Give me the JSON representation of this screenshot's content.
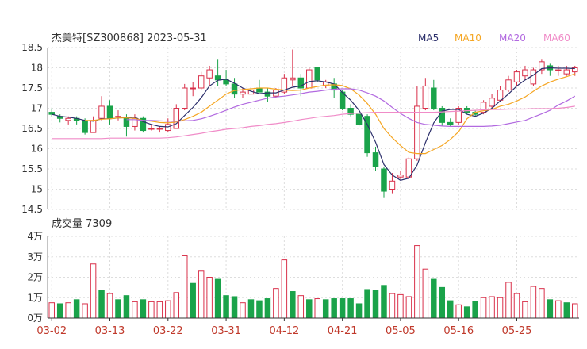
{
  "header": {
    "title": "杰美特[SZ300868] 2023-05-31",
    "legend": [
      {
        "label": "MA5",
        "color": "#2c2f6b"
      },
      {
        "label": "MA10",
        "color": "#f5a623"
      },
      {
        "label": "MA20",
        "color": "#b26ae0"
      },
      {
        "label": "MA60",
        "color": "#f08cc8"
      }
    ]
  },
  "volume_label": "成交量 7309",
  "colors": {
    "up": "#d9304a",
    "down": "#1aa34a",
    "grid": "#dddddd",
    "axis": "#333333"
  },
  "chart_data": [
    {
      "type": "candlestick",
      "name": "price",
      "ylim": [
        14.5,
        18.5
      ],
      "yticks": [
        "18.5",
        "18",
        "17.5",
        "17",
        "16.5",
        "16",
        "15.5",
        "15",
        "14.5"
      ],
      "x_labels": [
        "03-02",
        "03-13",
        "03-22",
        "03-31",
        "04-12",
        "04-21",
        "05-05",
        "05-16",
        "05-25"
      ],
      "x_label_index": [
        0,
        7,
        14,
        21,
        28,
        35,
        42,
        49,
        56
      ],
      "ohlc": [
        [
          16.9,
          17.0,
          16.8,
          16.85
        ],
        [
          16.8,
          16.85,
          16.65,
          16.75
        ],
        [
          16.7,
          16.8,
          16.6,
          16.75
        ],
        [
          16.75,
          16.8,
          16.6,
          16.7
        ],
        [
          16.7,
          16.75,
          16.35,
          16.4
        ],
        [
          16.4,
          16.8,
          16.4,
          16.7
        ],
        [
          16.75,
          17.3,
          16.7,
          17.05
        ],
        [
          17.05,
          17.2,
          16.6,
          16.75
        ],
        [
          16.8,
          16.95,
          16.7,
          16.8
        ],
        [
          16.75,
          16.85,
          16.3,
          16.55
        ],
        [
          16.55,
          16.85,
          16.45,
          16.75
        ],
        [
          16.75,
          16.8,
          16.4,
          16.45
        ],
        [
          16.5,
          16.6,
          16.45,
          16.5
        ],
        [
          16.5,
          16.55,
          16.4,
          16.5
        ],
        [
          16.45,
          16.75,
          16.4,
          16.6
        ],
        [
          16.5,
          17.1,
          16.5,
          17.0
        ],
        [
          17.0,
          17.6,
          16.95,
          17.5
        ],
        [
          17.5,
          17.65,
          17.3,
          17.5
        ],
        [
          17.5,
          17.9,
          17.45,
          17.8
        ],
        [
          17.75,
          18.05,
          17.55,
          17.95
        ],
        [
          17.8,
          18.2,
          17.55,
          17.7
        ],
        [
          17.7,
          17.95,
          17.55,
          17.6
        ],
        [
          17.6,
          17.75,
          17.25,
          17.35
        ],
        [
          17.35,
          17.5,
          17.25,
          17.4
        ],
        [
          17.35,
          17.55,
          17.3,
          17.45
        ],
        [
          17.5,
          17.7,
          17.4,
          17.4
        ],
        [
          17.4,
          17.5,
          17.15,
          17.3
        ],
        [
          17.3,
          17.5,
          17.25,
          17.45
        ],
        [
          17.4,
          17.85,
          17.35,
          17.75
        ],
        [
          17.7,
          18.45,
          17.55,
          17.75
        ],
        [
          17.75,
          17.85,
          17.3,
          17.5
        ],
        [
          17.5,
          18.0,
          17.5,
          17.95
        ],
        [
          18.0,
          18.0,
          17.65,
          17.7
        ],
        [
          17.55,
          17.7,
          17.5,
          17.65
        ],
        [
          17.6,
          17.75,
          17.25,
          17.45
        ],
        [
          17.4,
          17.45,
          16.95,
          17.0
        ],
        [
          17.0,
          17.1,
          16.8,
          16.85
        ],
        [
          16.85,
          16.9,
          16.55,
          16.6
        ],
        [
          16.8,
          16.85,
          15.8,
          15.9
        ],
        [
          15.9,
          16.05,
          15.45,
          15.55
        ],
        [
          15.5,
          15.55,
          14.8,
          14.95
        ],
        [
          15.0,
          15.4,
          14.9,
          15.2
        ],
        [
          15.3,
          15.45,
          15.25,
          15.35
        ],
        [
          15.3,
          15.8,
          15.25,
          15.75
        ],
        [
          15.75,
          17.55,
          15.7,
          17.05
        ],
        [
          17.0,
          17.75,
          16.95,
          17.55
        ],
        [
          17.5,
          17.7,
          16.95,
          17.0
        ],
        [
          17.0,
          17.05,
          16.55,
          16.65
        ],
        [
          16.65,
          16.75,
          16.55,
          16.6
        ],
        [
          16.65,
          17.05,
          16.6,
          17.0
        ],
        [
          17.0,
          17.05,
          16.85,
          16.9
        ],
        [
          16.9,
          16.95,
          16.8,
          16.85
        ],
        [
          16.9,
          17.2,
          16.85,
          17.15
        ],
        [
          17.05,
          17.35,
          17.0,
          17.25
        ],
        [
          17.2,
          17.55,
          17.15,
          17.45
        ],
        [
          17.45,
          17.8,
          17.4,
          17.7
        ],
        [
          17.65,
          17.95,
          17.55,
          17.9
        ],
        [
          17.8,
          18.05,
          17.7,
          17.95
        ],
        [
          17.6,
          18.0,
          17.55,
          17.95
        ],
        [
          17.95,
          18.2,
          17.85,
          18.15
        ],
        [
          18.05,
          18.1,
          17.8,
          17.95
        ],
        [
          17.95,
          18.05,
          17.8,
          17.95
        ],
        [
          17.85,
          18.05,
          17.8,
          17.95
        ],
        [
          17.9,
          18.05,
          17.8,
          18.0
        ]
      ],
      "ma": {
        "MA5": [
          16.85,
          16.8,
          16.78,
          16.75,
          16.7,
          16.68,
          16.74,
          16.74,
          16.76,
          16.77,
          16.78,
          16.67,
          16.6,
          16.55,
          16.54,
          16.62,
          16.82,
          17.02,
          17.26,
          17.55,
          17.69,
          17.72,
          17.62,
          17.5,
          17.42,
          17.36,
          17.38,
          17.38,
          17.45,
          17.52,
          17.55,
          17.66,
          17.68,
          17.65,
          17.6,
          17.39,
          17.2,
          16.95,
          16.6,
          16.16,
          15.61,
          15.35,
          15.22,
          15.27,
          15.6,
          16.15,
          16.64,
          16.93,
          16.97,
          16.97,
          16.85,
          16.8,
          16.88,
          17.0,
          17.18,
          17.35,
          17.55,
          17.7,
          17.82,
          17.98,
          18.0,
          17.99,
          17.99,
          17.98
        ],
        "MA10": [
          null,
          null,
          null,
          null,
          16.7,
          16.7,
          16.73,
          16.74,
          16.76,
          16.76,
          16.75,
          16.7,
          16.68,
          16.65,
          16.64,
          16.66,
          16.72,
          16.8,
          16.9,
          17.05,
          17.2,
          17.35,
          17.44,
          17.46,
          17.48,
          17.5,
          17.5,
          17.47,
          17.45,
          17.44,
          17.45,
          17.5,
          17.54,
          17.57,
          17.58,
          17.56,
          17.48,
          17.33,
          17.12,
          16.85,
          16.5,
          16.27,
          16.08,
          15.91,
          15.88,
          15.88,
          15.98,
          16.08,
          16.23,
          16.42,
          16.74,
          16.9,
          16.94,
          16.97,
          17.05,
          17.1,
          17.18,
          17.28,
          17.42,
          17.55,
          17.65,
          17.72,
          17.78,
          17.85
        ],
        "MA20": [
          null,
          null,
          null,
          null,
          null,
          null,
          null,
          null,
          null,
          16.72,
          16.72,
          16.7,
          16.7,
          16.69,
          16.68,
          16.68,
          16.69,
          16.7,
          16.74,
          16.8,
          16.87,
          16.95,
          17.03,
          17.1,
          17.15,
          17.2,
          17.25,
          17.28,
          17.3,
          17.33,
          17.36,
          17.4,
          17.42,
          17.45,
          17.47,
          17.48,
          17.48,
          17.45,
          17.38,
          17.3,
          17.18,
          17.02,
          16.87,
          16.75,
          16.65,
          16.6,
          16.58,
          16.56,
          16.55,
          16.55,
          16.55,
          16.55,
          16.55,
          16.56,
          16.58,
          16.62,
          16.66,
          16.7,
          16.78,
          16.86,
          16.95,
          17.08,
          17.18,
          17.3
        ],
        "MA60": [
          16.25,
          16.25,
          16.25,
          16.25,
          16.25,
          16.25,
          16.25,
          16.26,
          16.26,
          16.26,
          16.26,
          16.26,
          16.26,
          16.26,
          16.27,
          16.29,
          16.32,
          16.35,
          16.38,
          16.42,
          16.45,
          16.48,
          16.5,
          16.52,
          16.55,
          16.57,
          16.6,
          16.62,
          16.65,
          16.68,
          16.72,
          16.75,
          16.78,
          16.8,
          16.82,
          16.85,
          16.87,
          16.88,
          16.89,
          16.9,
          16.9,
          16.9,
          16.9,
          16.9,
          16.9,
          16.9,
          16.9,
          16.91,
          16.92,
          16.93,
          16.94,
          16.95,
          16.96,
          16.97,
          16.97,
          16.98,
          16.98,
          16.98,
          16.99,
          16.99,
          16.99,
          17.0,
          17.02,
          17.05
        ]
      }
    },
    {
      "type": "bar",
      "name": "volume",
      "ylim": [
        0,
        4
      ],
      "yticks": [
        "4万",
        "3万",
        "2万",
        "1万",
        "0万"
      ],
      "values": [
        0.75,
        0.7,
        0.75,
        0.9,
        0.7,
        2.65,
        1.35,
        1.2,
        0.9,
        1.1,
        0.8,
        0.9,
        0.8,
        0.8,
        0.85,
        1.25,
        3.05,
        1.7,
        2.3,
        2.0,
        1.9,
        1.1,
        1.05,
        0.75,
        0.9,
        0.85,
        0.95,
        1.45,
        2.85,
        1.3,
        1.1,
        0.9,
        0.95,
        0.9,
        0.95,
        0.95,
        0.95,
        0.7,
        1.4,
        1.35,
        1.6,
        1.2,
        1.15,
        1.05,
        3.55,
        2.4,
        1.9,
        1.5,
        0.85,
        0.65,
        0.55,
        0.8,
        1.0,
        1.05,
        1.0,
        1.75,
        1.2,
        0.8,
        1.55,
        1.45,
        0.9,
        0.85,
        0.75,
        0.7
      ],
      "up": [
        true,
        false,
        true,
        false,
        true,
        true,
        false,
        true,
        false,
        false,
        true,
        false,
        true,
        true,
        true,
        true,
        true,
        false,
        true,
        true,
        false,
        false,
        false,
        true,
        false,
        false,
        false,
        true,
        true,
        false,
        true,
        false,
        true,
        false,
        false,
        false,
        false,
        false,
        false,
        false,
        false,
        true,
        true,
        true,
        true,
        true,
        false,
        false,
        false,
        true,
        false,
        false,
        true,
        true,
        true,
        true,
        true,
        true,
        true,
        true,
        false,
        true,
        false,
        true
      ]
    }
  ]
}
